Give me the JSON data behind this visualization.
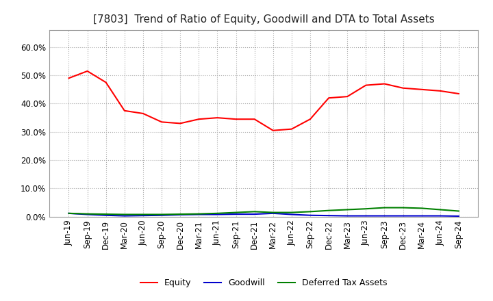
{
  "title": "[7803]  Trend of Ratio of Equity, Goodwill and DTA to Total Assets",
  "x_labels": [
    "Jun-19",
    "Sep-19",
    "Dec-19",
    "Mar-20",
    "Jun-20",
    "Sep-20",
    "Dec-20",
    "Mar-21",
    "Jun-21",
    "Sep-21",
    "Dec-21",
    "Mar-22",
    "Jun-22",
    "Sep-22",
    "Dec-22",
    "Mar-23",
    "Jun-23",
    "Sep-23",
    "Dec-23",
    "Mar-24",
    "Jun-24",
    "Sep-24"
  ],
  "equity": [
    49.0,
    51.5,
    47.5,
    37.5,
    36.5,
    33.5,
    33.0,
    34.5,
    35.0,
    34.5,
    34.5,
    30.5,
    31.0,
    34.5,
    42.0,
    42.5,
    46.5,
    47.0,
    45.5,
    45.0,
    44.5,
    43.5
  ],
  "goodwill": [
    1.2,
    0.8,
    0.5,
    0.3,
    0.4,
    0.5,
    0.7,
    0.8,
    0.8,
    0.9,
    0.9,
    1.2,
    0.8,
    0.5,
    0.4,
    0.3,
    0.3,
    0.3,
    0.3,
    0.3,
    0.3,
    0.2
  ],
  "dta": [
    1.2,
    1.0,
    0.9,
    0.8,
    0.8,
    0.8,
    0.9,
    1.0,
    1.2,
    1.5,
    1.8,
    1.5,
    1.5,
    1.8,
    2.2,
    2.5,
    2.8,
    3.2,
    3.2,
    3.0,
    2.5,
    2.0
  ],
  "equity_color": "#FF0000",
  "goodwill_color": "#0000CC",
  "dta_color": "#008000",
  "ylim": [
    0,
    66
  ],
  "yticks": [
    0,
    10,
    20,
    30,
    40,
    50,
    60
  ],
  "background_color": "#FFFFFF",
  "plot_bg_color": "#FFFFFF",
  "grid_color": "#AAAAAA",
  "spine_color": "#999999",
  "title_fontsize": 11,
  "tick_fontsize": 8.5,
  "legend_fontsize": 9
}
